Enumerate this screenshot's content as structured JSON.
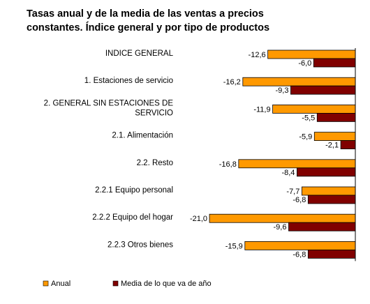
{
  "chart_data": {
    "type": "bar",
    "orientation": "horizontal",
    "title_lines": [
      "Tasas anual y de la media de las ventas a precios",
      "constantes. Índice general y por tipo de productos"
    ],
    "xlabel": "",
    "ylabel": "",
    "xlim": [
      -22,
      0
    ],
    "grid": false,
    "legend_position": "bottom",
    "categories": [
      "INDICE GENERAL",
      "1. Estaciones de servicio",
      "2. GENERAL SIN ESTACIONES DE SERVICIO",
      "2.1. Alimentación",
      "2.2. Resto",
      "2.2.1 Equipo personal",
      "2.2.2 Equipo del hogar",
      "2.2.3 Otros bienes"
    ],
    "category_label_lines": [
      [
        "INDICE GENERAL"
      ],
      [
        "1. Estaciones de servicio"
      ],
      [
        "2. GENERAL SIN ESTACIONES DE",
        "SERVICIO"
      ],
      [
        "2.1. Alimentación"
      ],
      [
        "2.2. Resto"
      ],
      [
        "2.2.1 Equipo personal"
      ],
      [
        "2.2.2 Equipo del hogar"
      ],
      [
        "2.2.3 Otros bienes"
      ]
    ],
    "series": [
      {
        "name": "Anual",
        "color": "#ff9900",
        "values": [
          -12.6,
          -16.2,
          -11.9,
          -5.9,
          -16.8,
          -7.7,
          -21.0,
          -15.9
        ],
        "labels": [
          "-12,6",
          "-16,2",
          "-11,9",
          "-5,9",
          "-16,8",
          "-7,7",
          "-21,0",
          "-15,9"
        ]
      },
      {
        "name": "Media de lo que va de año",
        "color": "#800000",
        "values": [
          -6.0,
          -9.3,
          -5.5,
          -2.1,
          -8.4,
          -6.8,
          -9.6,
          -6.8
        ],
        "labels": [
          "-6,0",
          "-9,3",
          "-5,5",
          "-2,1",
          "-8,4",
          "-6,8",
          "-9,6",
          "-6,8"
        ]
      }
    ]
  }
}
